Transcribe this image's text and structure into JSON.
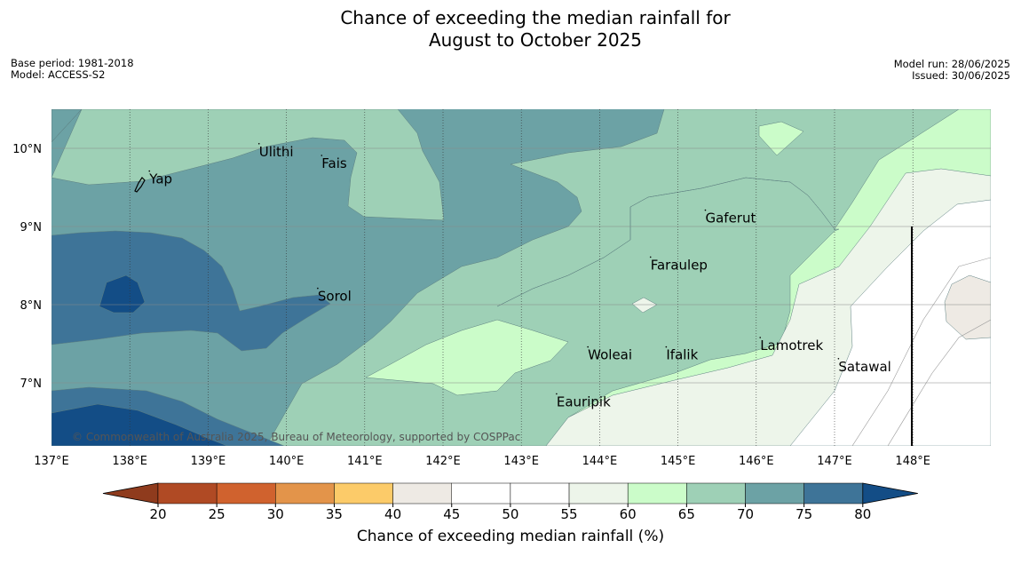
{
  "title_line1": "Chance of exceeding the median rainfall for",
  "title_line2": "August to October 2025",
  "base_period": "Base period: 1981-2018",
  "model": "Model: ACCESS-S2",
  "model_run": "Model run: 28/06/2025",
  "issued": "Issued: 30/06/2025",
  "copyright": "© Commonwealth of Australia 2025, Bureau of Meteorology, supported by COSPPac",
  "colorbar_label": "Chance of exceeding median rainfall (%)",
  "lon_ticks": [
    "137°E",
    "138°E",
    "139°E",
    "140°E",
    "141°E",
    "142°E",
    "143°E",
    "144°E",
    "145°E",
    "146°E",
    "147°E",
    "148°E"
  ],
  "lat_ticks": [
    "10°N",
    "9°N",
    "8°N",
    "7°N"
  ],
  "places": [
    {
      "name": "Yap",
      "lon": 138.25,
      "lat": 9.55
    },
    {
      "name": "Ulithi",
      "lon": 139.65,
      "lat": 9.9
    },
    {
      "name": "Fais",
      "lon": 140.45,
      "lat": 9.75
    },
    {
      "name": "Gaferut",
      "lon": 145.35,
      "lat": 9.05
    },
    {
      "name": "Faraulep",
      "lon": 144.65,
      "lat": 8.45
    },
    {
      "name": "Sorol",
      "lon": 140.4,
      "lat": 8.05
    },
    {
      "name": "Woleai",
      "lon": 143.85,
      "lat": 7.3
    },
    {
      "name": "Ifalik",
      "lon": 144.85,
      "lat": 7.3
    },
    {
      "name": "Lamotrek",
      "lon": 146.05,
      "lat": 7.42
    },
    {
      "name": "Satawal",
      "lon": 147.05,
      "lat": 7.15
    },
    {
      "name": "Eauripik",
      "lon": 143.45,
      "lat": 6.7
    }
  ],
  "colorbar": {
    "ticks": [
      "20",
      "25",
      "30",
      "35",
      "40",
      "45",
      "50",
      "55",
      "60",
      "65",
      "70",
      "75",
      "80"
    ],
    "under_color": "#8f3b1d",
    "over_color": "#134d86",
    "colors": [
      "#b04a24",
      "#d0622e",
      "#e3944a",
      "#fccb69",
      "#eeeae4",
      "#ffffff",
      "#ffffff",
      "#edf5ea",
      "#cbfcc9",
      "#9ed0b6",
      "#6ca2a5",
      "#3e7498"
    ]
  },
  "fill_colors": {
    "c55": "#edf5ea",
    "c60": "#cbfcc9",
    "c65": "#9ed0b6",
    "c70": "#6ca2a5",
    "c75": "#3e7498",
    "c80": "#134d86",
    "c40": "#eeeae4"
  }
}
